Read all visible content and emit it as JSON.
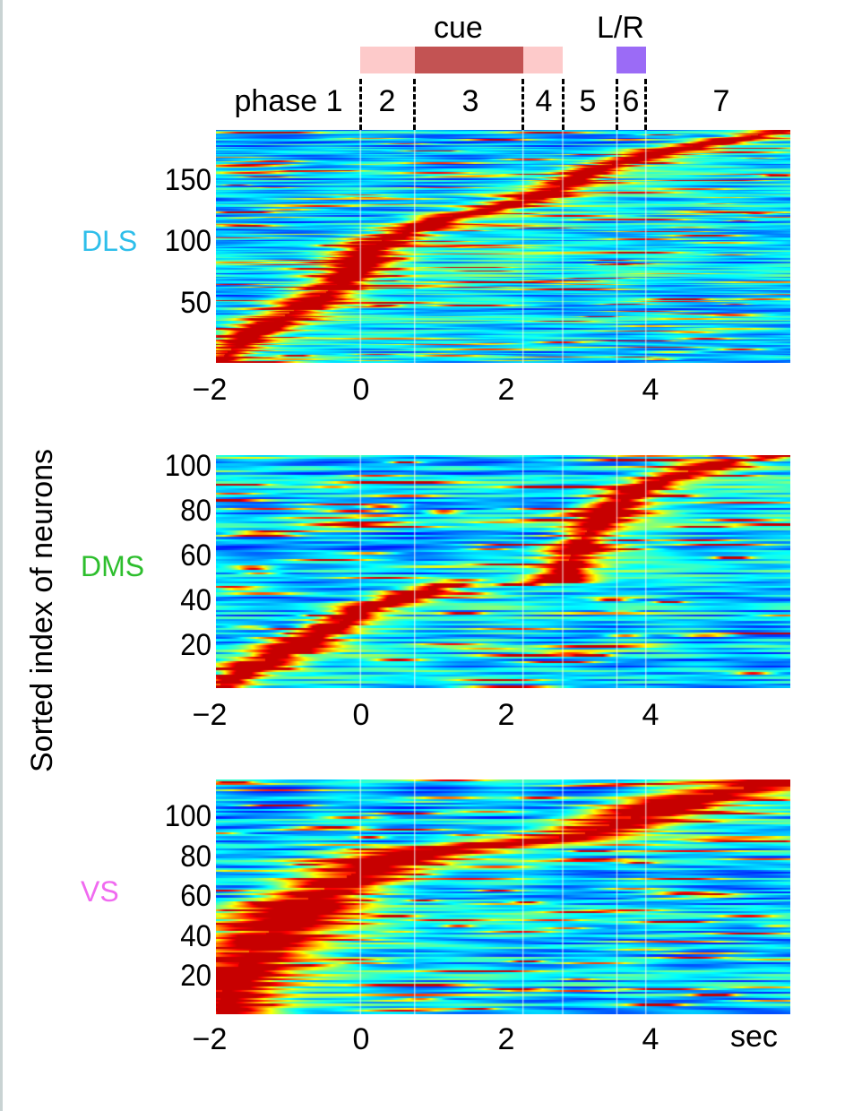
{
  "chart_data": [
    {
      "type": "heatmap",
      "region": "DLS",
      "region_color": "#2EBEEA",
      "xlabel": "",
      "ylabel": "Sorted index of neurons",
      "xlim": [
        -2,
        5.95
      ],
      "ylim": [
        0,
        190
      ],
      "xticks": [
        "−2",
        "0",
        "2",
        "4"
      ],
      "xtick_values": [
        -2,
        0,
        2,
        4
      ],
      "yticks": [
        "150",
        "100",
        "50"
      ],
      "ytick_values": [
        150,
        100,
        50
      ],
      "n_neurons": 190,
      "colormap": "jet",
      "peak_trajectory": {
        "neuron": [
          0,
          20,
          40,
          60,
          75,
          90,
          100,
          112,
          118,
          125,
          135,
          145,
          158,
          165,
          172,
          180,
          190
        ],
        "time": [
          -2,
          -1.6,
          -1.0,
          -0.4,
          -0.1,
          0.05,
          0.3,
          0.9,
          1.1,
          1.8,
          2.4,
          2.8,
          3.2,
          3.7,
          4.1,
          4.9,
          5.9
        ]
      },
      "seed": 11
    },
    {
      "type": "heatmap",
      "region": "DMS",
      "region_color": "#2DBE2D",
      "xlabel": "",
      "ylabel": "Sorted index of neurons",
      "xlim": [
        -2,
        5.95
      ],
      "ylim": [
        1,
        105
      ],
      "xticks": [
        "−2",
        "0",
        "2",
        "4"
      ],
      "xtick_values": [
        -2,
        0,
        2,
        4
      ],
      "yticks": [
        "100",
        "80",
        "60",
        "40",
        "20"
      ],
      "ytick_values": [
        100,
        80,
        60,
        40,
        20
      ],
      "n_neurons": 105,
      "colormap": "jet",
      "peak_trajectory": {
        "neuron": [
          1,
          10,
          20,
          30,
          36,
          40,
          44,
          47,
          48,
          52,
          60,
          70,
          80,
          90,
          96,
          102,
          105
        ],
        "time": [
          -2,
          -1.5,
          -0.9,
          -0.3,
          0.0,
          0.5,
          0.8,
          1.2,
          2.7,
          2.8,
          2.9,
          3.1,
          3.4,
          3.8,
          4.3,
          5.0,
          5.9
        ]
      },
      "seed": 23
    },
    {
      "type": "heatmap",
      "region": "VS",
      "region_color": "#F06AF0",
      "xlabel": "sec",
      "ylabel": "Sorted index of neurons",
      "xlim": [
        -2,
        5.95
      ],
      "ylim": [
        1,
        119
      ],
      "xticks": [
        "−2",
        "0",
        "2",
        "4"
      ],
      "xtick_values": [
        -2,
        0,
        2,
        4
      ],
      "yticks": [
        "100",
        "80",
        "60",
        "40",
        "20"
      ],
      "ytick_values": [
        100,
        80,
        60,
        40,
        20
      ],
      "n_neurons": 119,
      "colormap": "jet",
      "peak_trajectory": {
        "neuron": [
          1,
          15,
          30,
          45,
          60,
          70,
          78,
          84,
          88,
          92,
          98,
          104,
          110,
          115,
          119
        ],
        "time": [
          -2,
          -1.9,
          -1.6,
          -1.2,
          -0.7,
          -0.2,
          0.3,
          1.0,
          2.4,
          3.1,
          3.6,
          4.0,
          4.6,
          5.3,
          5.9
        ]
      },
      "seed": 37
    }
  ],
  "task_timeline": {
    "phase_boundaries_sec": [
      0,
      0.75,
      2.25,
      2.8,
      3.55,
      3.95
    ],
    "phases": [
      "phase 1",
      "2",
      "3",
      "4",
      "5",
      "6",
      "7"
    ],
    "cue": {
      "label": "cue",
      "outer_start": 0,
      "outer_end": 2.8,
      "inner_start": 0.75,
      "inner_end": 2.25,
      "outer_color": "#FDCACA",
      "inner_color": "#C35353"
    },
    "lr": {
      "label": "L/R",
      "start": 3.55,
      "end": 3.95,
      "color": "#9B6BF6"
    }
  }
}
